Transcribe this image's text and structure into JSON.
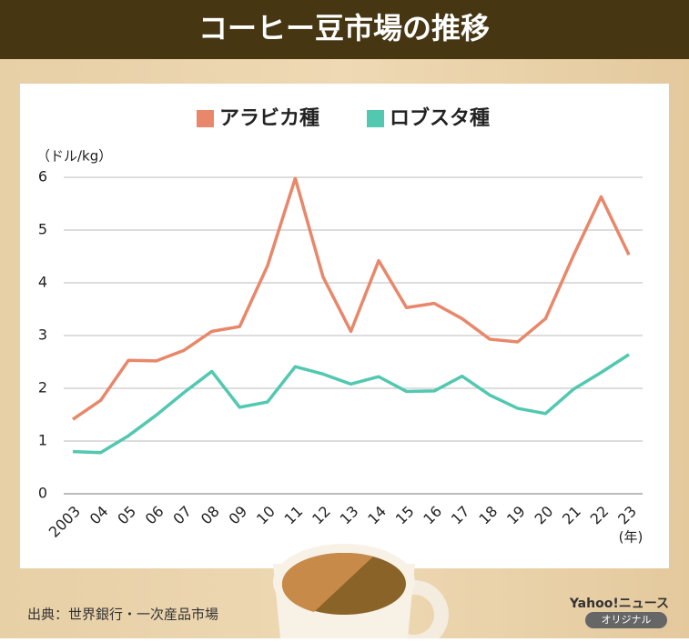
{
  "header": {
    "title": "コーヒー豆市場の推移"
  },
  "chart_data": {
    "type": "line",
    "y_label": "（ドル/kg）",
    "x_label": "(年)",
    "categories": [
      "2003",
      "04",
      "05",
      "06",
      "07",
      "08",
      "09",
      "10",
      "11",
      "12",
      "13",
      "14",
      "15",
      "16",
      "17",
      "18",
      "19",
      "20",
      "21",
      "22",
      "23"
    ],
    "series": [
      {
        "name": "アラビカ種",
        "color": "#e8876a",
        "values": [
          1.41,
          1.77,
          2.53,
          2.52,
          2.72,
          3.08,
          3.17,
          4.32,
          5.98,
          4.11,
          3.08,
          4.42,
          3.53,
          3.61,
          3.32,
          2.93,
          2.88,
          3.32,
          4.51,
          5.63,
          4.53
        ]
      },
      {
        "name": "ロブスタ種",
        "color": "#52c8b0",
        "values": [
          0.8,
          0.78,
          1.1,
          1.49,
          1.92,
          2.32,
          1.64,
          1.74,
          2.41,
          2.27,
          2.08,
          2.22,
          1.94,
          1.95,
          2.23,
          1.87,
          1.62,
          1.52,
          1.98,
          2.3,
          2.64
        ]
      }
    ],
    "ylim": [
      0,
      6
    ],
    "yticks": [
      0,
      1,
      2,
      3,
      4,
      5,
      6
    ],
    "grid": true
  },
  "footer": {
    "source": "出典：世界銀行・一次産品市場",
    "brand": "Yahoo!ニュース",
    "badge": "オリジナル"
  }
}
